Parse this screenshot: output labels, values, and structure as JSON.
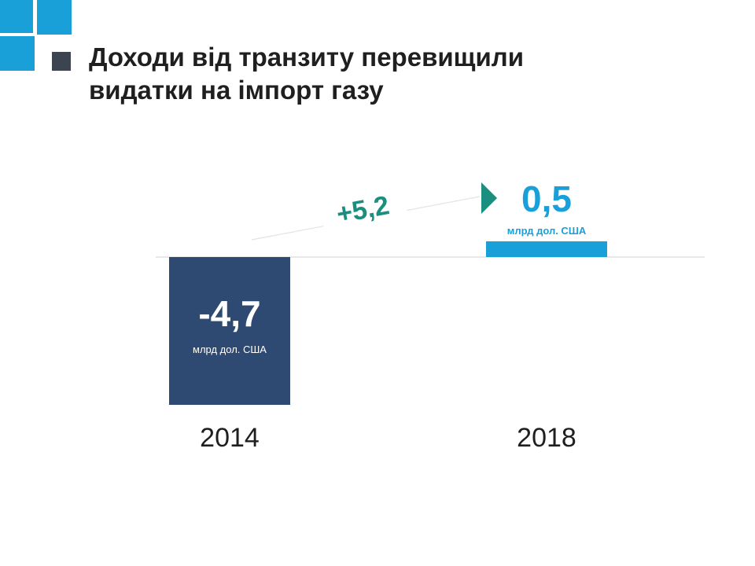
{
  "title": {
    "line1": "Доходи від транзиту перевищили",
    "line2": "видатки на імпорт газу"
  },
  "colors": {
    "brand_blue": "#1aa0d8",
    "dark_square": "#3b4450",
    "bar_negative": "#2e4a72",
    "bar_positive": "#1aa0d8",
    "delta": "#1a8f7f",
    "baseline": "#d9d9d9"
  },
  "chart_data": {
    "type": "bar",
    "title": "Доходи від транзиту перевищили видатки на імпорт газу",
    "categories": [
      "2014",
      "2018"
    ],
    "values": [
      -4.7,
      0.5
    ],
    "value_labels": [
      "-4,7",
      "0,5"
    ],
    "unit_label": "млрд дол. США",
    "ylim": [
      -4.7,
      0.5
    ],
    "grid": false,
    "legend": "none",
    "annotations": [
      {
        "type": "change-arrow",
        "text": "+5,2",
        "from": "2014",
        "to": "2018",
        "value": 5.2
      }
    ]
  }
}
